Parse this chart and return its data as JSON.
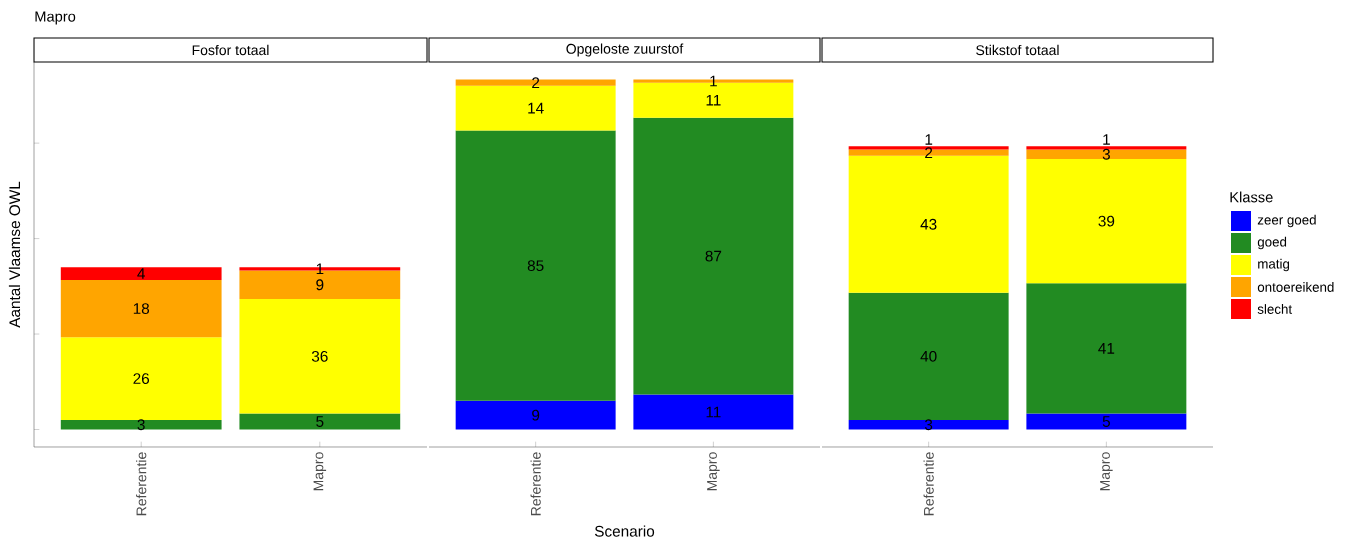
{
  "chart_data": [
    {
      "type": "bar",
      "title": "Fosfor totaal",
      "ylabel": "Aantal Vlaamse OWL",
      "annotations": [
        "Mapro"
      ],
      "categories": [
        "Referentie",
        "Mapro"
      ],
      "stacked": true,
      "data_labels": true,
      "ylim": [
        -5.5,
        115.5
      ],
      "yticks": [
        {
          "value": 0,
          "label": null
        },
        {
          "value": 30,
          "label": null
        },
        {
          "value": 60,
          "label": null
        },
        {
          "value": 90,
          "label": null
        }
      ],
      "tick_labels": "x",
      "grid": false,
      "legend": false,
      "series": [
        {
          "color": "#0000ff",
          "values": [
            null,
            null
          ]
        },
        {
          "color": "#228b22",
          "values": [
            3,
            5
          ]
        },
        {
          "color": "#ffff00",
          "values": [
            26,
            36
          ]
        },
        {
          "color": "#ffa500",
          "values": [
            18,
            9
          ]
        },
        {
          "color": "#ff0000",
          "values": [
            4,
            1
          ]
        }
      ]
    },
    {
      "type": "bar",
      "title": "Opgeloste zuurstof",
      "xlabel": "Scenario",
      "categories": [
        "Referentie",
        "Mapro"
      ],
      "stacked": true,
      "data_labels": true,
      "tick_labels": "x",
      "grid": false,
      "legend": false,
      "series": [
        {
          "color": "#0000ff",
          "values": [
            9,
            11
          ]
        },
        {
          "color": "#228b22",
          "values": [
            85,
            87
          ]
        },
        {
          "color": "#ffff00",
          "values": [
            14,
            11
          ]
        },
        {
          "color": "#ffa500",
          "values": [
            2,
            1
          ]
        },
        {
          "color": "#ff0000",
          "values": [
            null,
            null
          ]
        }
      ]
    },
    {
      "type": "bar",
      "title": "Stikstof totaal",
      "legend_title": "Klasse",
      "categories": [
        "Referentie",
        "Mapro"
      ],
      "stacked": true,
      "data_labels": true,
      "tick_labels": "x",
      "grid": false,
      "legend": "right",
      "series": [
        {
          "name": "zeer goed",
          "color": "#0000ff",
          "values": [
            3,
            5
          ]
        },
        {
          "name": "goed",
          "color": "#228b22",
          "values": [
            40,
            41
          ]
        },
        {
          "name": "matig",
          "color": "#ffff00",
          "values": [
            43,
            39
          ]
        },
        {
          "name": "ontoereikend",
          "color": "#ffa500",
          "values": [
            2,
            3
          ]
        },
        {
          "name": "slecht",
          "color": "#ff0000",
          "values": [
            1,
            1
          ]
        }
      ]
    }
  ]
}
